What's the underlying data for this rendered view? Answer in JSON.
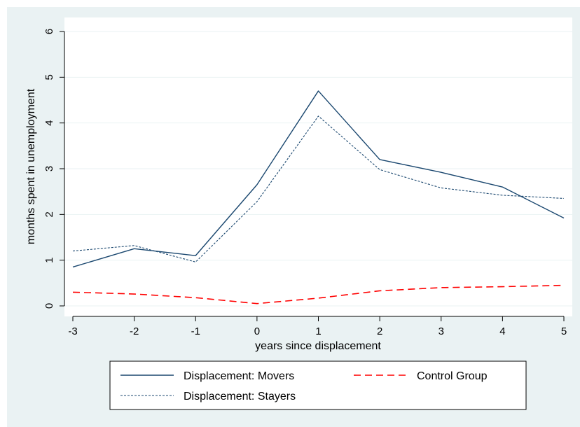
{
  "chart_data": {
    "type": "line",
    "title": "",
    "xlabel": "years since displacement",
    "ylabel": "months spent in unemployment",
    "x": [
      -3,
      -2,
      -1,
      0,
      1,
      2,
      3,
      4,
      5
    ],
    "xlim": [
      -3,
      5
    ],
    "ylim": [
      0,
      6
    ],
    "xticks": [
      "-3",
      "-2",
      "-1",
      "0",
      "1",
      "2",
      "3",
      "4",
      "5"
    ],
    "yticks": [
      "0",
      "1",
      "2",
      "3",
      "4",
      "5",
      "6"
    ],
    "grid": "horizontal",
    "legend_position": "bottom",
    "series": [
      {
        "name": "Displacement: Movers",
        "style": "solid",
        "color": "#1a476f",
        "values": [
          0.85,
          1.25,
          1.1,
          2.65,
          4.7,
          3.2,
          2.92,
          2.6,
          1.92
        ]
      },
      {
        "name": "Displacement: Stayers",
        "style": "dotted",
        "color": "#1a476f",
        "values": [
          1.2,
          1.32,
          0.96,
          2.28,
          4.15,
          2.98,
          2.58,
          2.42,
          2.35
        ]
      },
      {
        "name": "Control Group",
        "style": "dashed",
        "color": "#ff0000",
        "values": [
          0.3,
          0.26,
          0.18,
          0.05,
          0.17,
          0.33,
          0.4,
          0.42,
          0.45
        ]
      }
    ],
    "legend_order": [
      0,
      2,
      1
    ]
  },
  "colors": {
    "outer_background": "#eaf2f3",
    "plot_background": "#ffffff",
    "gridline": "#eaf2f3",
    "axis": "#000000"
  }
}
